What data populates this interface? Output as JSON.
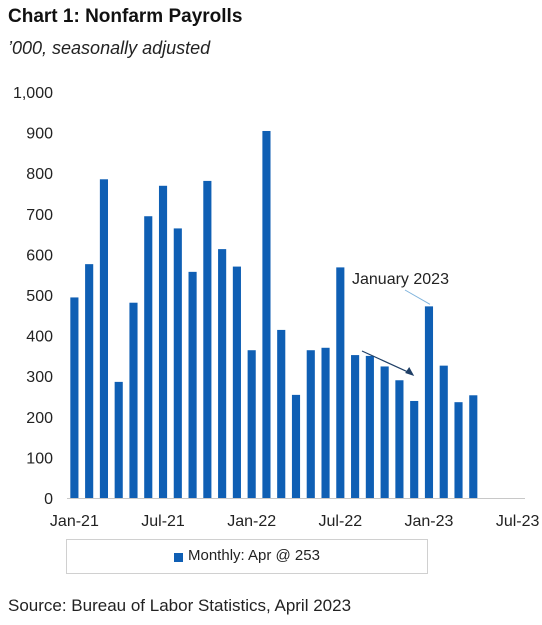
{
  "header": {
    "title": "Chart 1: Nonfarm Payrolls",
    "subtitle": "’000, seasonally adjusted"
  },
  "legend": {
    "label": "Monthly: Apr @ 253"
  },
  "annotation": {
    "text": "January 2023"
  },
  "source": "Source: Bureau of Labor Statistics, April 2023",
  "colors": {
    "bar": "#0f5fb4",
    "axis": "#c8c8c8",
    "text": "#222222"
  },
  "chart_data": {
    "type": "bar",
    "title": "Chart 1: Nonfarm Payrolls",
    "subtitle": "’000, seasonally adjusted",
    "xlabel": "",
    "ylabel": "",
    "ylim": [
      0,
      1000
    ],
    "yticks": [
      0,
      100,
      200,
      300,
      400,
      500,
      600,
      700,
      800,
      900,
      1000
    ],
    "ytick_labels": [
      "0",
      "100",
      "200",
      "300",
      "400",
      "500",
      "600",
      "700",
      "800",
      "900",
      "1,000"
    ],
    "xtick_labels": [
      "Jan-21",
      "Jul-21",
      "Jan-22",
      "Jul-22",
      "Jan-23",
      "Jul-23"
    ],
    "xtick_indices": [
      0,
      6,
      12,
      18,
      24,
      30
    ],
    "months": [
      "Jan-21",
      "Feb-21",
      "Mar-21",
      "Apr-21",
      "May-21",
      "Jun-21",
      "Jul-21",
      "Aug-21",
      "Sep-21",
      "Oct-21",
      "Nov-21",
      "Dec-21",
      "Jan-22",
      "Feb-22",
      "Mar-22",
      "Apr-22",
      "May-22",
      "Jun-22",
      "Jul-22",
      "Aug-22",
      "Sep-22",
      "Oct-22",
      "Nov-22",
      "Dec-22",
      "Jan-23",
      "Feb-23",
      "Mar-23",
      "Apr-23",
      "May-23",
      "Jun-23",
      "Jul-23"
    ],
    "series": [
      {
        "name": "Monthly: Apr @ 253",
        "values": [
          494,
          576,
          785,
          286,
          481,
          694,
          769,
          664,
          557,
          781,
          613,
          570,
          364,
          904,
          414,
          254,
          364,
          370,
          568,
          352,
          350,
          324,
          290,
          239,
          472,
          326,
          236,
          253,
          null,
          null,
          null
        ]
      }
    ],
    "grid": false,
    "legend_position": "bottom",
    "annotations": [
      {
        "text": "January 2023",
        "target": "Jan-23"
      }
    ]
  }
}
